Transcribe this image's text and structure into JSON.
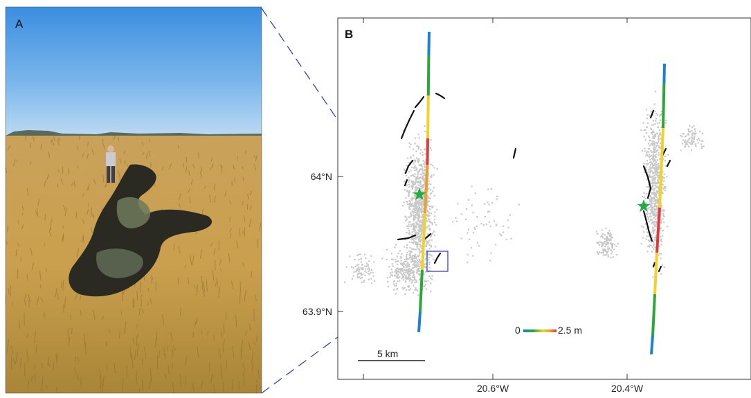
{
  "panel_a": {
    "letter": "A",
    "description_icon": "field-photo-icon"
  },
  "panel_b": {
    "letter": "B",
    "y_ticks": [
      "64°N",
      "63.9°N"
    ],
    "x_ticks": [
      "20.6°W",
      "20.4°W"
    ],
    "distance_scale": {
      "label": "5 km"
    },
    "slip_scale": {
      "min_label": "0",
      "max_label": "2.5 m"
    },
    "colors": {
      "slip": [
        "#1f7fd0",
        "#2aa63c",
        "#f2d12a",
        "#e8a030",
        "#e03a3a"
      ],
      "epicenter": "#22aa44",
      "zoom_lines": "#2233cc"
    }
  }
}
